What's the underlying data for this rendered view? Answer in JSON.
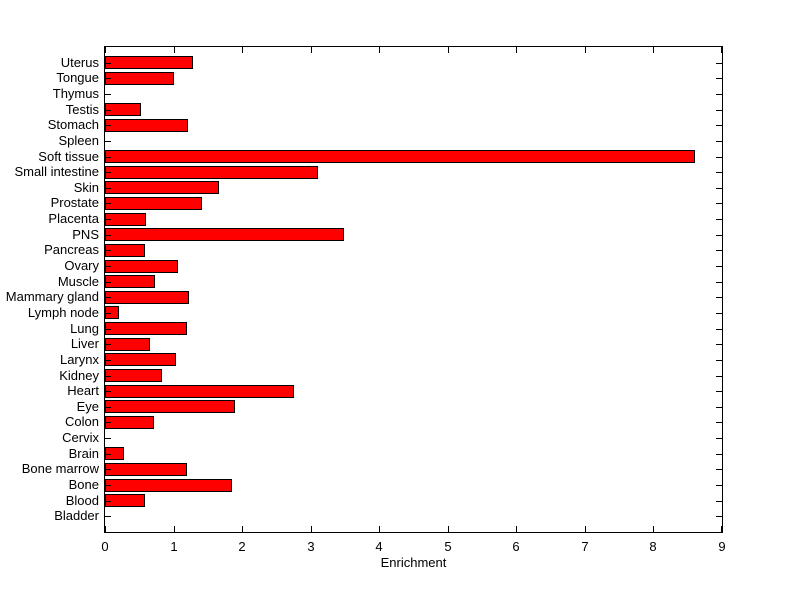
{
  "chart_data": {
    "type": "bar",
    "orientation": "horizontal",
    "title": "",
    "xlabel": "Enrichment",
    "ylabel": "",
    "xlim": [
      0,
      9
    ],
    "xticks": [
      0,
      1,
      2,
      3,
      4,
      5,
      6,
      7,
      8,
      9
    ],
    "grid": false,
    "box": true,
    "bar_color": "#FF0000",
    "bar_edge_color": "#000000",
    "axis_color": "#000000",
    "background_color": "#FFFFFF",
    "categories_order": "top-to-bottom",
    "categories": [
      "Uterus",
      "Tongue",
      "Thymus",
      "Testis",
      "Stomach",
      "Spleen",
      "Soft tissue",
      "Small intestine",
      "Skin",
      "Prostate",
      "Placenta",
      "PNS",
      "Pancreas",
      "Ovary",
      "Muscle",
      "Mammary gland",
      "Lymph node",
      "Lung",
      "Liver",
      "Larynx",
      "Kidney",
      "Heart",
      "Eye",
      "Colon",
      "Cervix",
      "Brain",
      "Bone marrow",
      "Bone",
      "Blood",
      "Bladder"
    ],
    "values": [
      1.28,
      1.01,
      0,
      0.53,
      1.21,
      0,
      8.6,
      3.1,
      1.67,
      1.41,
      0.6,
      3.49,
      0.58,
      1.07,
      0.73,
      1.23,
      0.21,
      1.2,
      0.65,
      1.04,
      0.83,
      2.75,
      1.9,
      0.72,
      0,
      0.28,
      1.2,
      1.85,
      0.59,
      0
    ]
  }
}
